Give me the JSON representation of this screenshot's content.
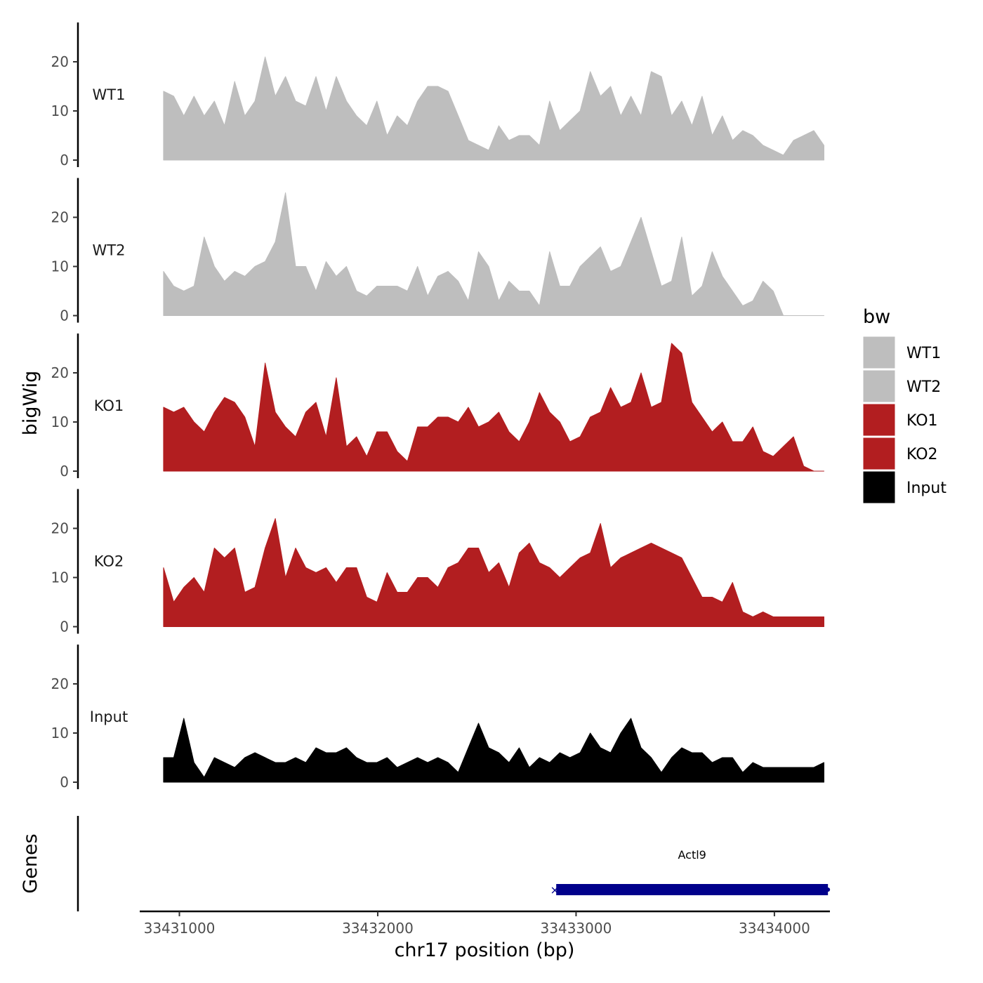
{
  "chart_data": {
    "type": "area",
    "title": "",
    "xlabel": "chr17 position (bp)",
    "ylabel": "bigWig",
    "gene_track_label": "Genes",
    "xlim": [
      33430800,
      33434280
    ],
    "ylim": [
      0,
      28
    ],
    "x_ticks": [
      33431000,
      33432000,
      33433000,
      33434000
    ],
    "x_tick_labels": [
      "33431000",
      "33432000",
      "33433000",
      "33434000"
    ],
    "y_ticks": [
      0,
      10,
      20
    ],
    "y_tick_labels": [
      "0",
      "10",
      "20"
    ],
    "data_range": [
      33430920,
      33434250
    ],
    "legend": {
      "title": "bw",
      "position": "right",
      "entries": [
        {
          "label": "WT1",
          "color": "#bebebe"
        },
        {
          "label": "WT2",
          "color": "#bebebe"
        },
        {
          "label": "KO1",
          "color": "#b21e20"
        },
        {
          "label": "KO2",
          "color": "#b21e20"
        },
        {
          "label": "Input",
          "color": "#000000"
        }
      ]
    },
    "series": [
      {
        "name": "WT1",
        "color": "#bebebe",
        "values": [
          14,
          13,
          9,
          13,
          9,
          12,
          7,
          16,
          9,
          12,
          21,
          13,
          17,
          12,
          11,
          17,
          10,
          17,
          12,
          9,
          7,
          12,
          5,
          9,
          7,
          12,
          15,
          15,
          14,
          9,
          4,
          3,
          2,
          7,
          4,
          5,
          5,
          3,
          12,
          6,
          8,
          10,
          18,
          13,
          15,
          9,
          13,
          9,
          18,
          17,
          9,
          12,
          7,
          13,
          5,
          9,
          4,
          6,
          5,
          3,
          2,
          1,
          4,
          5,
          6,
          3
        ]
      },
      {
        "name": "WT2",
        "color": "#bebebe",
        "values": [
          9,
          6,
          5,
          6,
          16,
          10,
          7,
          9,
          8,
          10,
          11,
          15,
          25,
          10,
          10,
          5,
          11,
          8,
          10,
          5,
          4,
          6,
          6,
          6,
          5,
          10,
          4,
          8,
          9,
          7,
          3,
          13,
          10,
          3,
          7,
          5,
          5,
          2,
          13,
          6,
          6,
          10,
          12,
          14,
          9,
          10,
          15,
          20,
          13,
          6,
          7,
          16,
          4,
          6,
          13,
          8,
          5,
          2,
          3,
          7,
          5,
          0,
          0,
          0,
          0,
          0
        ]
      },
      {
        "name": "KO1",
        "color": "#b21e20",
        "values": [
          13,
          12,
          13,
          10,
          8,
          12,
          15,
          14,
          11,
          5,
          22,
          12,
          9,
          7,
          12,
          14,
          7,
          19,
          5,
          7,
          3,
          8,
          8,
          4,
          2,
          9,
          9,
          11,
          11,
          10,
          13,
          9,
          10,
          12,
          8,
          6,
          10,
          16,
          12,
          10,
          6,
          7,
          11,
          12,
          17,
          13,
          14,
          20,
          13,
          14,
          26,
          24,
          14,
          11,
          8,
          10,
          6,
          6,
          9,
          4,
          3,
          5,
          7,
          1,
          0,
          0
        ]
      },
      {
        "name": "KO2",
        "color": "#b21e20",
        "values": [
          12,
          5,
          8,
          10,
          7,
          16,
          14,
          16,
          7,
          8,
          16,
          22,
          10,
          16,
          12,
          11,
          12,
          9,
          12,
          12,
          6,
          5,
          11,
          7,
          7,
          10,
          10,
          8,
          12,
          13,
          16,
          16,
          11,
          13,
          8,
          15,
          17,
          13,
          12,
          10,
          12,
          14,
          15,
          21,
          12,
          14,
          15,
          16,
          17,
          16,
          15,
          14,
          10,
          6,
          6,
          5,
          9,
          3,
          2,
          3,
          2,
          2,
          2,
          2,
          2,
          2
        ]
      },
      {
        "name": "Input",
        "color": "#000000",
        "values": [
          5,
          5,
          13,
          4,
          1,
          5,
          4,
          3,
          5,
          6,
          5,
          4,
          4,
          5,
          4,
          7,
          6,
          6,
          7,
          5,
          4,
          4,
          5,
          3,
          4,
          5,
          4,
          5,
          4,
          2,
          7,
          12,
          7,
          6,
          4,
          7,
          3,
          5,
          4,
          6,
          5,
          6,
          10,
          7,
          6,
          10,
          13,
          7,
          5,
          2,
          5,
          7,
          6,
          6,
          4,
          5,
          5,
          2,
          4,
          3,
          3,
          3,
          3,
          3,
          3,
          4
        ]
      }
    ],
    "genes": [
      {
        "name": "Actl9",
        "start": 33432900,
        "end": 33434270,
        "strand": "-",
        "color": "#00008b"
      }
    ]
  }
}
